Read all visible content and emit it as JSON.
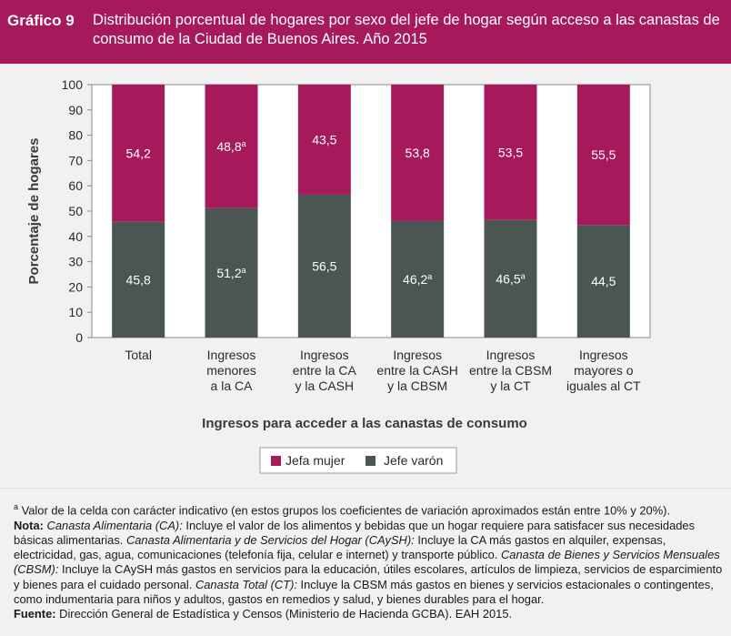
{
  "header": {
    "label": "Gráfico 9",
    "title": "Distribución porcentual de hogares por sexo del jefe de hogar según acceso a las canastas de consumo de la Ciudad de Buenos Aires. Año 2015"
  },
  "colors": {
    "header": "#a6195b",
    "mujer": "#a6195b",
    "varon": "#4b5551",
    "background": "#f1f1f1"
  },
  "chart_data": {
    "type": "bar",
    "stacked": true,
    "categories": [
      [
        "Total"
      ],
      [
        "Ingresos",
        "menores",
        "a la CA"
      ],
      [
        "Ingresos",
        "entre la CA",
        "y la CASH"
      ],
      [
        "Ingresos",
        "entre la CASH",
        "y la CBSM"
      ],
      [
        "Ingresos",
        "entre la CBSM",
        "y la CT"
      ],
      [
        "Ingresos",
        "mayores o",
        "iguales al CT"
      ]
    ],
    "series": [
      {
        "name": "Jefe varón",
        "values": [
          45.8,
          51.2,
          56.5,
          46.2,
          46.5,
          44.5
        ],
        "labels": [
          "45,8",
          "51,2",
          "56,5",
          "46,2",
          "46,5",
          "44,5"
        ],
        "marks": [
          "",
          "a",
          "",
          "a",
          "a",
          ""
        ]
      },
      {
        "name": "Jefa mujer",
        "values": [
          54.2,
          48.8,
          43.5,
          53.8,
          53.5,
          55.5
        ],
        "labels": [
          "54,2",
          "48,8",
          "43,5",
          "53,8",
          "53,5",
          "55,5"
        ],
        "marks": [
          "",
          "a",
          "",
          "",
          "",
          ""
        ]
      }
    ],
    "legend_order": [
      "Jefa mujer",
      "Jefe varón"
    ],
    "legend_position": "bottom-center",
    "xlabel": "Ingresos para acceder a las canastas de consumo",
    "ylabel": "Porcentaje de hogares",
    "ylim": [
      0,
      100
    ],
    "yticks": [
      0,
      10,
      20,
      30,
      40,
      50,
      60,
      70,
      80,
      90,
      100
    ],
    "grid": false
  },
  "notes": {
    "footnote_mark": "a",
    "footnote_text": " Valor de la celda con carácter indicativo (en estos grupos los coeficientes de variación aproximados están entre 10% y 20%).",
    "nota_label": "Nota:",
    "ca_term": "Canasta Alimentaria (CA):",
    "ca_text": " Incluye el valor de los alimentos y bebidas que un hogar requiere para satisfacer sus necesidades básicas alimentarias. ",
    "caysh_term": "Canasta Alimentaria y de Servicios del Hogar (CAySH):",
    "caysh_text": " Incluye la CA más gastos en alquiler, expensas, electricidad, gas, agua, comunicaciones (telefonía fija, celular e internet) y transporte público. ",
    "cbsm_term": "Canasta de Bienes y Servicios Mensuales (CBSM):",
    "cbsm_text": " Incluye la CAySH más gastos en servicios para la educación, útiles escolares, artículos de limpieza, servicios de esparcimiento y bienes para el cuidado personal. ",
    "ct_term": "Canasta Total (CT):",
    "ct_text": " Incluye la CBSM más gastos en bienes y servicios estacionales o contingentes, como indumentaria para niños y adultos, gastos en remedios y salud, y bienes durables para el hogar.",
    "fuente_label": "Fuente:",
    "fuente_text": " Dirección General de Estadística y Censos (Ministerio de Hacienda GCBA). EAH 2015."
  }
}
